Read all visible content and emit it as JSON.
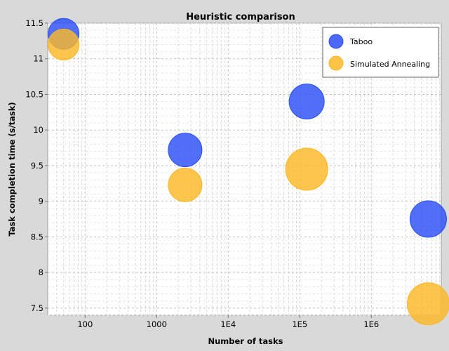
{
  "chart_data": {
    "type": "scatter",
    "title": "Heuristic comparison",
    "xlabel": "Number of tasks",
    "ylabel": "Task completion time (s/task)",
    "x_scale": "log",
    "xlim": [
      30,
      9500000
    ],
    "ylim": [
      7.4,
      11.5
    ],
    "x_tick_labels": [
      {
        "value": 100,
        "label": "100"
      },
      {
        "value": 1000,
        "label": "1000"
      },
      {
        "value": 10000,
        "label": "1E4"
      },
      {
        "value": 100000,
        "label": "1E5"
      },
      {
        "value": 1000000,
        "label": "1E6"
      }
    ],
    "y_ticks": [
      7.5,
      8,
      8.5,
      9,
      9.5,
      10,
      10.5,
      11,
      11.5
    ],
    "y_tick_labels": [
      "7.5",
      "8",
      "8.5",
      "9",
      "9.5",
      "10",
      "10.5",
      "11",
      "11.5"
    ],
    "grid": true,
    "legend_position": "top-right",
    "series": [
      {
        "name": "Taboo",
        "color": "#2b4ff5",
        "x": [
          50,
          2500,
          125000,
          6250000
        ],
        "y": [
          11.35,
          9.72,
          10.4,
          8.75
        ]
      },
      {
        "name": "Simulated Annealing",
        "color": "#fbb827",
        "x": [
          50,
          2500,
          125000,
          6250000
        ],
        "y": [
          11.2,
          9.23,
          9.45,
          7.56
        ]
      }
    ]
  }
}
